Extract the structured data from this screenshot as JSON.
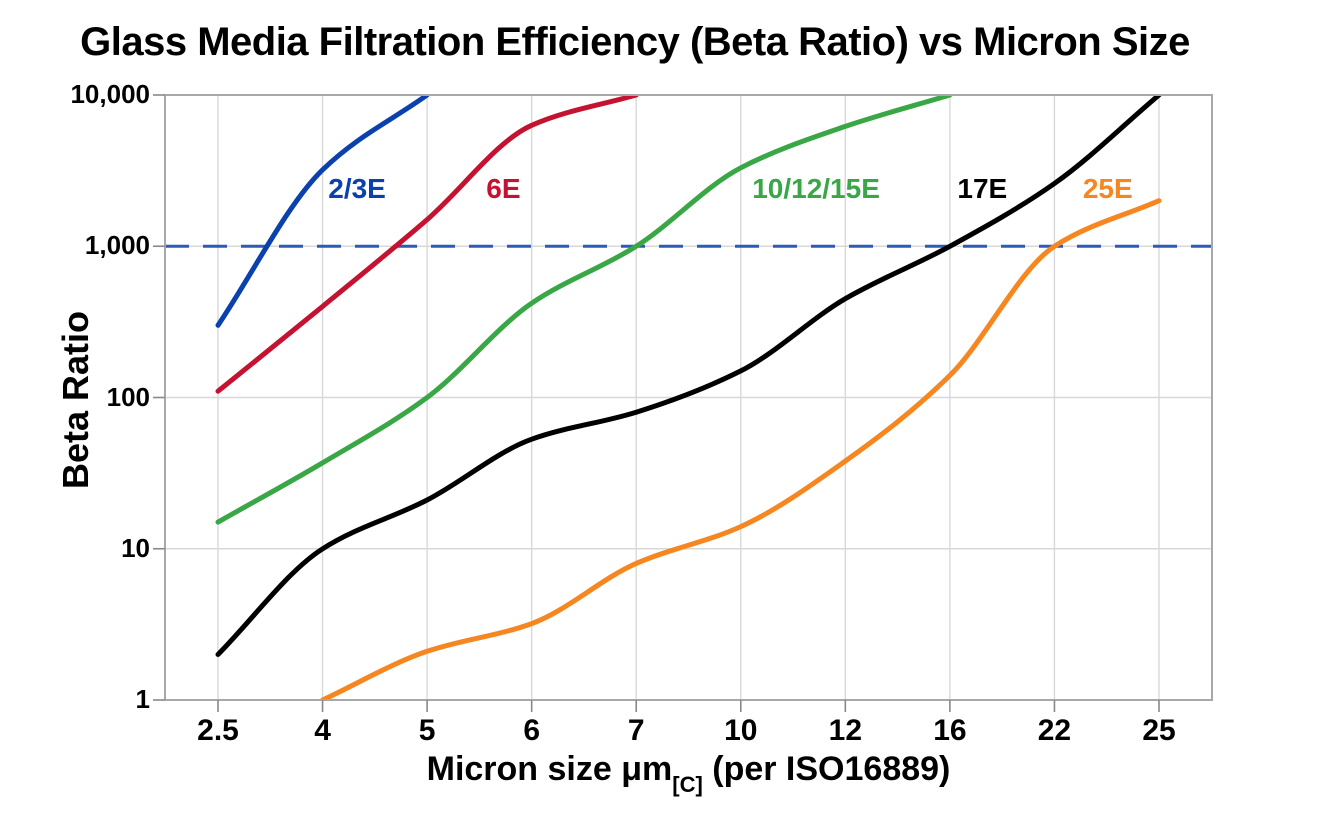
{
  "title": "Glass Media Filtration Efficiency (Beta Ratio) vs Micron Size",
  "chart_data": {
    "type": "line",
    "title": "Glass Media Filtration Efficiency (Beta Ratio) vs Micron Size",
    "xlabel": "Micron size μm[C] (per ISO16889)",
    "xlabel_parts": {
      "pre": "Micron size μm",
      "sub": "[C]",
      "post": " (per ISO16889)"
    },
    "ylabel": "Beta Ratio",
    "x_axis": {
      "scale": "categorical",
      "categories": [
        "2.5",
        "4",
        "5",
        "6",
        "7",
        "10",
        "12",
        "16",
        "22",
        "25"
      ]
    },
    "y_axis": {
      "scale": "log",
      "range": [
        1,
        10000
      ],
      "ticks": [
        "10,000",
        "1,000",
        "100",
        "10",
        "1"
      ]
    },
    "grid": true,
    "legend": "inline-curve-labels",
    "reference_line": {
      "value": 1000,
      "style": "dashed",
      "color": "#2b5cb8"
    },
    "series": [
      {
        "name": "2/3E",
        "color": "#0a41ad",
        "points": [
          [
            2.5,
            300
          ],
          [
            4,
            3200
          ],
          [
            5,
            10000
          ]
        ]
      },
      {
        "name": "6E",
        "color": "#c41230",
        "points": [
          [
            2.5,
            110
          ],
          [
            4,
            400
          ],
          [
            5,
            1500
          ],
          [
            6,
            6300
          ],
          [
            7,
            10000
          ]
        ]
      },
      {
        "name": "10/12/15E",
        "color": "#3aa747",
        "points": [
          [
            2.5,
            15
          ],
          [
            4,
            37
          ],
          [
            5,
            100
          ],
          [
            6,
            420
          ],
          [
            7,
            1000
          ],
          [
            10,
            3300
          ],
          [
            12,
            6200
          ],
          [
            16,
            10000
          ]
        ]
      },
      {
        "name": "17E",
        "color": "#000000",
        "points": [
          [
            2.5,
            2
          ],
          [
            4,
            10
          ],
          [
            5,
            21
          ],
          [
            6,
            53
          ],
          [
            7,
            80
          ],
          [
            10,
            150
          ],
          [
            12,
            450
          ],
          [
            16,
            1000
          ],
          [
            22,
            2600
          ],
          [
            25,
            10000
          ]
        ]
      },
      {
        "name": "25E",
        "color": "#f6861f",
        "points": [
          [
            4,
            1
          ],
          [
            5,
            2.1
          ],
          [
            6,
            3.2
          ],
          [
            7,
            8
          ],
          [
            10,
            14
          ],
          [
            12,
            38
          ],
          [
            16,
            140
          ],
          [
            22,
            1000
          ],
          [
            25,
            2000
          ]
        ]
      }
    ],
    "series_labels": [
      {
        "text": "2/3E",
        "series": "2/3E",
        "x_index": 1.33,
        "value": 2400
      },
      {
        "text": "6E",
        "series": "6E",
        "x_index": 2.73,
        "value": 2400
      },
      {
        "text": "10/12/15E",
        "series": "10/12/15E",
        "x_index": 5.72,
        "value": 2400
      },
      {
        "text": "17E",
        "series": "17E",
        "x_index": 7.31,
        "value": 2400
      },
      {
        "text": "25E",
        "series": "25E",
        "x_index": 8.51,
        "value": 2400
      }
    ],
    "colors": {
      "grid": "#d8d8d8",
      "border": "#a8a8a8",
      "tick": "#888888",
      "background": "#ffffff"
    }
  }
}
